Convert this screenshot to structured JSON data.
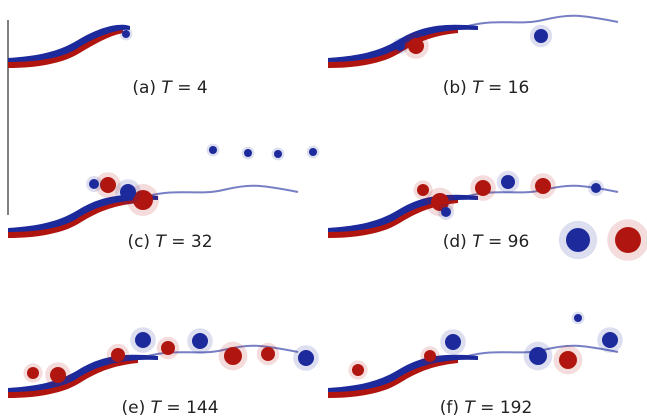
{
  "figure": {
    "panels": [
      {
        "label": "(a)",
        "variable": "T",
        "relation": "=",
        "time": 4
      },
      {
        "label": "(b)",
        "variable": "T",
        "relation": "=",
        "time": 16
      },
      {
        "label": "(c)",
        "variable": "T",
        "relation": "=",
        "time": 32
      },
      {
        "label": "(d)",
        "variable": "T",
        "relation": "=",
        "time": 96
      },
      {
        "label": "(e)",
        "variable": "T",
        "relation": "=",
        "time": 144
      },
      {
        "label": "(f)",
        "variable": "T",
        "relation": "=",
        "time": 192
      }
    ]
  }
}
